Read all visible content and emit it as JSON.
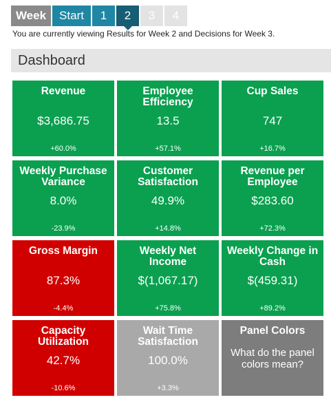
{
  "nav": {
    "week_label": "Week",
    "start_label": "Start",
    "weeks": [
      {
        "label": "1",
        "state": "normal"
      },
      {
        "label": "2",
        "state": "active"
      },
      {
        "label": "3",
        "state": "disabled"
      },
      {
        "label": "4",
        "state": "disabled"
      }
    ]
  },
  "status_text": "You are currently viewing Results for Week 2 and Decisions for Week 3.",
  "dashboard": {
    "title": "Dashboard",
    "panels": [
      {
        "title": "Revenue",
        "value": "$3,686.75",
        "change": "+60.0%",
        "color": "green"
      },
      {
        "title": "Employee Efficiency",
        "value": "13.5",
        "change": "+57.1%",
        "color": "green"
      },
      {
        "title": "Cup Sales",
        "value": "747",
        "change": "+16.7%",
        "color": "green"
      },
      {
        "title": "Weekly Purchase Variance",
        "value": "8.0%",
        "change": "-23.9%",
        "color": "green"
      },
      {
        "title": "Customer Satisfaction",
        "value": "49.9%",
        "change": "+14.8%",
        "color": "green"
      },
      {
        "title": "Revenue per Employee",
        "value": "$283.60",
        "change": "+72.3%",
        "color": "green"
      },
      {
        "title": "Gross Margin",
        "value": "87.3%",
        "change": "-4.4%",
        "color": "red"
      },
      {
        "title": "Weekly Net Income",
        "value": "$(1,067.17)",
        "change": "+75.8%",
        "color": "green"
      },
      {
        "title": "Weekly Change in Cash",
        "value": "$(459.31)",
        "change": "+89.2%",
        "color": "green"
      },
      {
        "title": "Capacity Utilization",
        "value": "42.7%",
        "change": "-10.6%",
        "color": "red"
      },
      {
        "title": "Wait Time Satisfaction",
        "value": "100.0%",
        "change": "+3.3%",
        "color": "gray"
      }
    ],
    "info_panel": {
      "title": "Panel Colors",
      "text": "What do the panel colors mean?"
    }
  },
  "colors": {
    "green": "#0aa04f",
    "red": "#d10000",
    "gray": "#a9a9a9",
    "dark_gray": "#7d7d7d",
    "nav_blue": "#1f87a3",
    "nav_active": "#175d74"
  }
}
